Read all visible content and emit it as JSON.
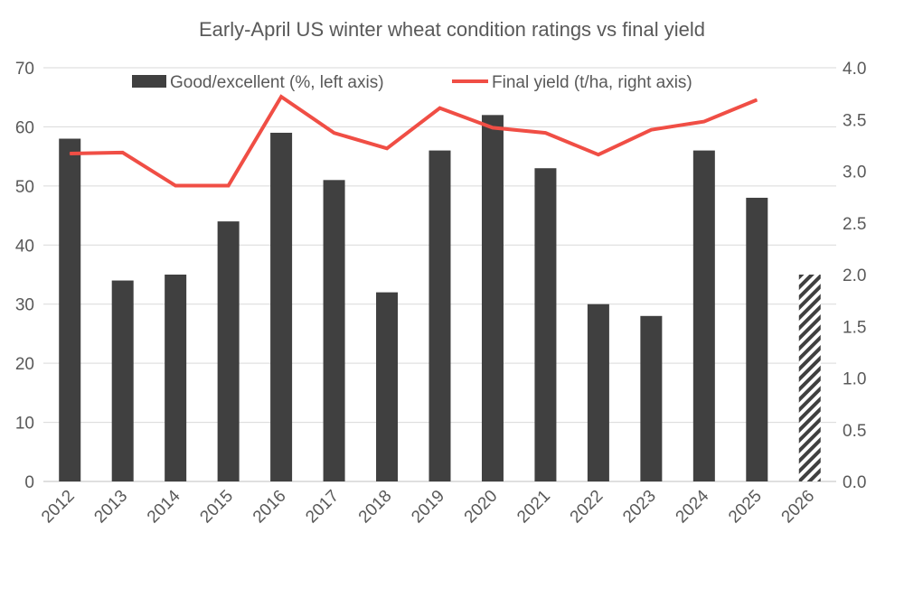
{
  "chart_data": {
    "type": "bar",
    "title": "Early-April US winter wheat condition ratings vs final yield",
    "categories": [
      "2012",
      "2013",
      "2014",
      "2015",
      "2016",
      "2017",
      "2018",
      "2019",
      "2020",
      "2021",
      "2022",
      "2023",
      "2024",
      "2025",
      "2026"
    ],
    "series": [
      {
        "name": "Good/excellent (%, left axis)",
        "type": "bar",
        "axis": "left",
        "color": "#404040",
        "values": [
          58,
          34,
          35,
          44,
          59,
          51,
          32,
          56,
          62,
          53,
          30,
          28,
          56,
          48,
          35
        ],
        "hatched": [
          false,
          false,
          false,
          false,
          false,
          false,
          false,
          false,
          false,
          false,
          false,
          false,
          false,
          false,
          true
        ]
      },
      {
        "name": "Final yield (t/ha, right axis)",
        "type": "line",
        "axis": "right",
        "color": "#f04e45",
        "values": [
          3.17,
          3.18,
          2.86,
          2.86,
          3.72,
          3.37,
          3.22,
          3.61,
          3.42,
          3.37,
          3.16,
          3.4,
          3.48,
          3.69,
          null
        ]
      }
    ],
    "y_left": {
      "lim": [
        0,
        70
      ],
      "ticks": [
        "0",
        "10",
        "20",
        "30",
        "40",
        "50",
        "60",
        "70"
      ]
    },
    "y_right": {
      "lim": [
        0,
        4
      ],
      "ticks": [
        "0.0",
        "0.5",
        "1.0",
        "1.5",
        "2.0",
        "2.5",
        "3.0",
        "3.5",
        "4.0"
      ]
    },
    "grid": true,
    "legend": "top"
  }
}
